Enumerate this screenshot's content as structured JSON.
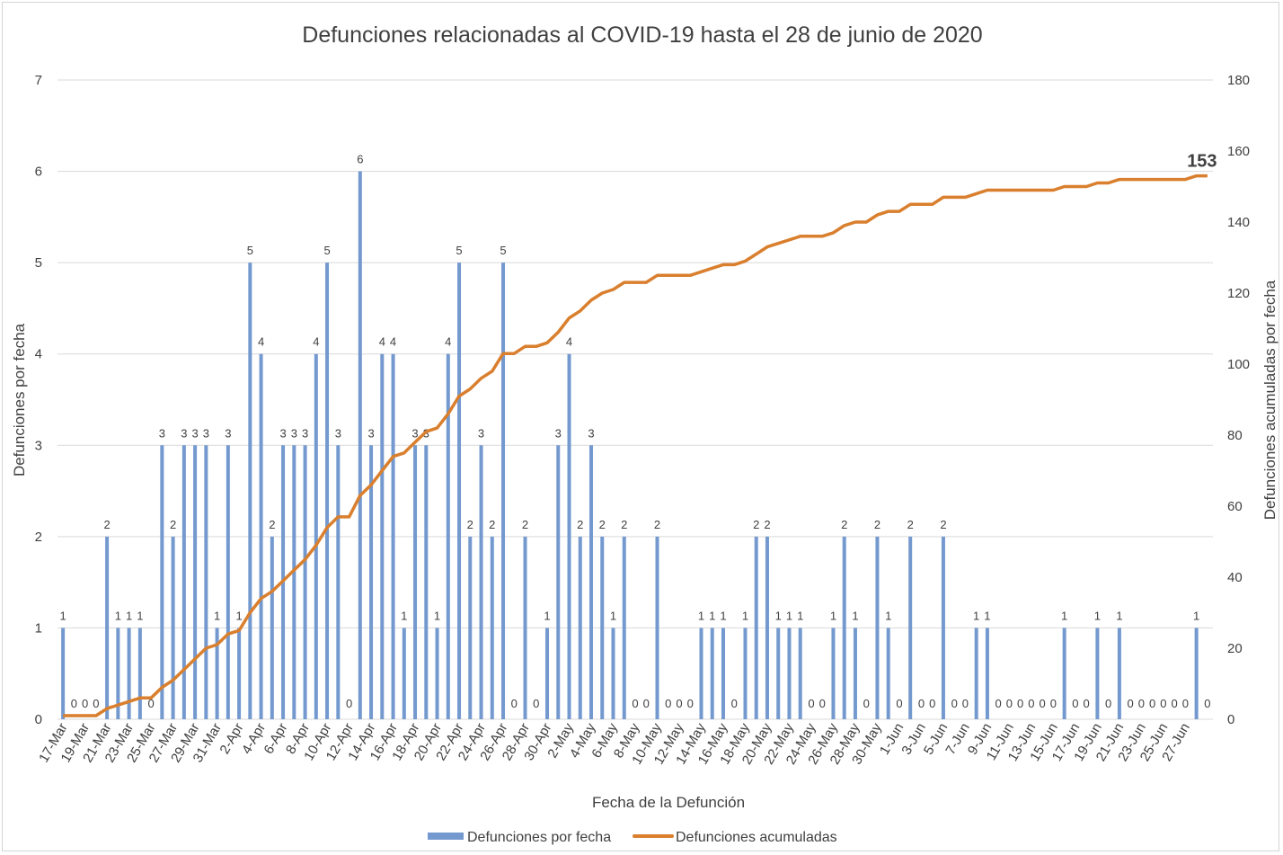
{
  "chart_data": {
    "type": "bar+line",
    "title": "Defunciones relacionadas al COVID-19 hasta el 28 de junio de 2020",
    "xlabel": "Fecha de la Defunción",
    "ylabel": "Defunciones por fecha",
    "y2label": "Defunciones acumuladas por fecha",
    "ylim": [
      0,
      7
    ],
    "y2lim": [
      0,
      180
    ],
    "yticks": [
      "0",
      "1",
      "2",
      "3",
      "4",
      "5",
      "6",
      "7"
    ],
    "y2ticks": [
      "0",
      "20",
      "40",
      "60",
      "80",
      "100",
      "120",
      "140",
      "160",
      "180"
    ],
    "x_tick_labels": [
      "17-Mar",
      "19-Mar",
      "21-Mar",
      "23-Mar",
      "25-Mar",
      "27-Mar",
      "29-Mar",
      "31-Mar",
      "2-Apr",
      "4-Apr",
      "6-Apr",
      "8-Apr",
      "10-Apr",
      "12-Apr",
      "14-Apr",
      "16-Apr",
      "18-Apr",
      "20-Apr",
      "22-Apr",
      "24-Apr",
      "26-Apr",
      "28-Apr",
      "30-Apr",
      "2-May",
      "4-May",
      "6-May",
      "8-May",
      "10-May",
      "12-May",
      "14-May",
      "16-May",
      "18-May",
      "20-May",
      "22-May",
      "24-May",
      "26-May",
      "28-May",
      "30-May",
      "1-Jun",
      "3-Jun",
      "5-Jun",
      "7-Jun",
      "9-Jun",
      "11-Jun",
      "13-Jun",
      "15-Jun",
      "17-Jun",
      "19-Jun",
      "21-Jun",
      "23-Jun",
      "25-Jun",
      "27-Jun"
    ],
    "series": [
      {
        "name": "Defunciones por fecha",
        "type": "bar",
        "color": "#7399cf",
        "axis": "left",
        "values": [
          1,
          0,
          0,
          0,
          2,
          1,
          1,
          1,
          0,
          3,
          2,
          3,
          3,
          3,
          1,
          3,
          1,
          5,
          4,
          2,
          3,
          3,
          3,
          4,
          5,
          3,
          0,
          6,
          3,
          4,
          4,
          1,
          3,
          3,
          1,
          4,
          5,
          2,
          3,
          2,
          5,
          0,
          2,
          0,
          1,
          3,
          4,
          2,
          3,
          2,
          1,
          2,
          0,
          0,
          2,
          0,
          0,
          0,
          1,
          1,
          1,
          0,
          1,
          2,
          2,
          1,
          1,
          1,
          0,
          0,
          1,
          2,
          1,
          0,
          2,
          1,
          0,
          2,
          0,
          0,
          2,
          0,
          0,
          1,
          1,
          0,
          0,
          0,
          0,
          0,
          0,
          1,
          0,
          0,
          1,
          0,
          1,
          0,
          0,
          0,
          0,
          0,
          0,
          1,
          0
        ]
      },
      {
        "name": "Defunciones acumuladas",
        "type": "line",
        "color": "#d97f2e",
        "axis": "right",
        "last_label": "153"
      }
    ]
  },
  "legend": {
    "bar_label": "Defunciones por fecha",
    "line_label": "Defunciones acumuladas"
  }
}
